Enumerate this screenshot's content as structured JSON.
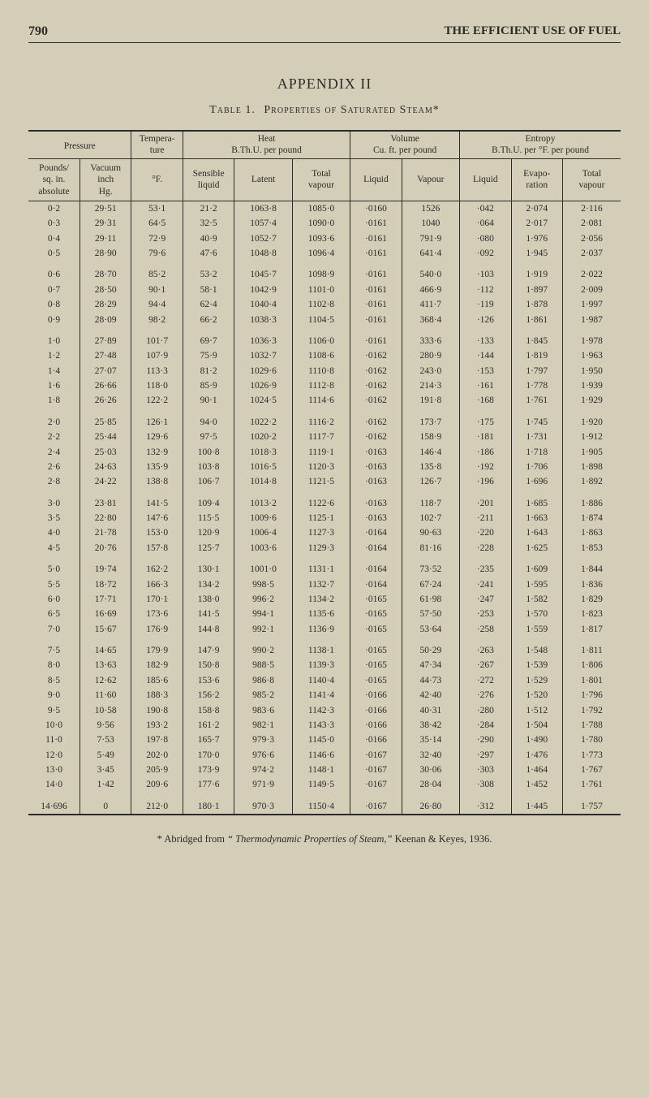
{
  "page_number": "790",
  "running_head": "THE EFFICIENT USE OF FUEL",
  "appendix_title": "APPENDIX II",
  "table_caption_prefix": "Table 1.",
  "table_caption_title": "Properties of Saturated Steam*",
  "footnote_prefix": "*  Abridged from ",
  "footnote_italic": "“ Thermodynamic Properties of Steam,”",
  "footnote_suffix": " Keenan & Keyes, 1936.",
  "group_headers": {
    "pressure": "Pressure",
    "temp": "Tempera-\nture",
    "heat": "Heat\nB.Th.U. per pound",
    "volume": "Volume\nCu. ft. per pound",
    "entropy": "Entropy\nB.Th.U. per °F. per pound"
  },
  "col_headers": {
    "pounds": "Pounds/\nsq. in.\nabsolute",
    "vacuum": "Vacuum\ninch\nHg.",
    "degF": "°F.",
    "sensible": "Sensible\nliquid",
    "latent": "Latent",
    "total_vap_heat": "Total\nvapour",
    "vol_liquid": "Liquid",
    "vol_vapour": "Vapour",
    "ent_liquid": "Liquid",
    "ent_evap": "Evapo-\nration",
    "ent_total": "Total\nvapour"
  },
  "rows": [
    [
      "0·2",
      "29·51",
      "53·1",
      "21·2",
      "1063·8",
      "1085·0",
      "·0160",
      "1526",
      "·042",
      "2·074",
      "2·116"
    ],
    [
      "0·3",
      "29·31",
      "64·5",
      "32·5",
      "1057·4",
      "1090·0",
      "·0161",
      "1040",
      "·064",
      "2·017",
      "2·081"
    ],
    [
      "0·4",
      "29·11",
      "72·9",
      "40·9",
      "1052·7",
      "1093·6",
      "·0161",
      "791·9",
      "·080",
      "1·976",
      "2·056"
    ],
    [
      "0·5",
      "28·90",
      "79·6",
      "47·6",
      "1048·8",
      "1096·4",
      "·0161",
      "641·4",
      "·092",
      "1·945",
      "2·037"
    ],
    [
      "0·6",
      "28·70",
      "85·2",
      "53·2",
      "1045·7",
      "1098·9",
      "·0161",
      "540·0",
      "·103",
      "1·919",
      "2·022"
    ],
    [
      "0·7",
      "28·50",
      "90·1",
      "58·1",
      "1042·9",
      "1101·0",
      "·0161",
      "466·9",
      "·112",
      "1·897",
      "2·009"
    ],
    [
      "0·8",
      "28·29",
      "94·4",
      "62·4",
      "1040·4",
      "1102·8",
      "·0161",
      "411·7",
      "·119",
      "1·878",
      "1·997"
    ],
    [
      "0·9",
      "28·09",
      "98·2",
      "66·2",
      "1038·3",
      "1104·5",
      "·0161",
      "368·4",
      "·126",
      "1·861",
      "1·987"
    ],
    [
      "1·0",
      "27·89",
      "101·7",
      "69·7",
      "1036·3",
      "1106·0",
      "·0161",
      "333·6",
      "·133",
      "1·845",
      "1·978"
    ],
    [
      "1·2",
      "27·48",
      "107·9",
      "75·9",
      "1032·7",
      "1108·6",
      "·0162",
      "280·9",
      "·144",
      "1·819",
      "1·963"
    ],
    [
      "1·4",
      "27·07",
      "113·3",
      "81·2",
      "1029·6",
      "1110·8",
      "·0162",
      "243·0",
      "·153",
      "1·797",
      "1·950"
    ],
    [
      "1·6",
      "26·66",
      "118·0",
      "85·9",
      "1026·9",
      "1112·8",
      "·0162",
      "214·3",
      "·161",
      "1·778",
      "1·939"
    ],
    [
      "1·8",
      "26·26",
      "122·2",
      "90·1",
      "1024·5",
      "1114·6",
      "·0162",
      "191·8",
      "·168",
      "1·761",
      "1·929"
    ],
    [
      "2·0",
      "25·85",
      "126·1",
      "94·0",
      "1022·2",
      "1116·2",
      "·0162",
      "173·7",
      "·175",
      "1·745",
      "1·920"
    ],
    [
      "2·2",
      "25·44",
      "129·6",
      "97·5",
      "1020·2",
      "1117·7",
      "·0162",
      "158·9",
      "·181",
      "1·731",
      "1·912"
    ],
    [
      "2·4",
      "25·03",
      "132·9",
      "100·8",
      "1018·3",
      "1119·1",
      "·0163",
      "146·4",
      "·186",
      "1·718",
      "1·905"
    ],
    [
      "2·6",
      "24·63",
      "135·9",
      "103·8",
      "1016·5",
      "1120·3",
      "·0163",
      "135·8",
      "·192",
      "1·706",
      "1·898"
    ],
    [
      "2·8",
      "24·22",
      "138·8",
      "106·7",
      "1014·8",
      "1121·5",
      "·0163",
      "126·7",
      "·196",
      "1·696",
      "1·892"
    ],
    [
      "3·0",
      "23·81",
      "141·5",
      "109·4",
      "1013·2",
      "1122·6",
      "·0163",
      "118·7",
      "·201",
      "1·685",
      "1·886"
    ],
    [
      "3·5",
      "22·80",
      "147·6",
      "115·5",
      "1009·6",
      "1125·1",
      "·0163",
      "102·7",
      "·211",
      "1·663",
      "1·874"
    ],
    [
      "4·0",
      "21·78",
      "153·0",
      "120·9",
      "1006·4",
      "1127·3",
      "·0164",
      "90·63",
      "·220",
      "1·643",
      "1·863"
    ],
    [
      "4·5",
      "20·76",
      "157·8",
      "125·7",
      "1003·6",
      "1129·3",
      "·0164",
      "81·16",
      "·228",
      "1·625",
      "1·853"
    ],
    [
      "5·0",
      "19·74",
      "162·2",
      "130·1",
      "1001·0",
      "1131·1",
      "·0164",
      "73·52",
      "·235",
      "1·609",
      "1·844"
    ],
    [
      "5·5",
      "18·72",
      "166·3",
      "134·2",
      "998·5",
      "1132·7",
      "·0164",
      "67·24",
      "·241",
      "1·595",
      "1·836"
    ],
    [
      "6·0",
      "17·71",
      "170·1",
      "138·0",
      "996·2",
      "1134·2",
      "·0165",
      "61·98",
      "·247",
      "1·582",
      "1·829"
    ],
    [
      "6·5",
      "16·69",
      "173·6",
      "141·5",
      "994·1",
      "1135·6",
      "·0165",
      "57·50",
      "·253",
      "1·570",
      "1·823"
    ],
    [
      "7·0",
      "15·67",
      "176·9",
      "144·8",
      "992·1",
      "1136·9",
      "·0165",
      "53·64",
      "·258",
      "1·559",
      "1·817"
    ],
    [
      "7·5",
      "14·65",
      "179·9",
      "147·9",
      "990·2",
      "1138·1",
      "·0165",
      "50·29",
      "·263",
      "1·548",
      "1·811"
    ],
    [
      "8·0",
      "13·63",
      "182·9",
      "150·8",
      "988·5",
      "1139·3",
      "·0165",
      "47·34",
      "·267",
      "1·539",
      "1·806"
    ],
    [
      "8·5",
      "12·62",
      "185·6",
      "153·6",
      "986·8",
      "1140·4",
      "·0165",
      "44·73",
      "·272",
      "1·529",
      "1·801"
    ],
    [
      "9·0",
      "11·60",
      "188·3",
      "156·2",
      "985·2",
      "1141·4",
      "·0166",
      "42·40",
      "·276",
      "1·520",
      "1·796"
    ],
    [
      "9·5",
      "10·58",
      "190·8",
      "158·8",
      "983·6",
      "1142·3",
      "·0166",
      "40·31",
      "·280",
      "1·512",
      "1·792"
    ],
    [
      "10·0",
      "9·56",
      "193·2",
      "161·2",
      "982·1",
      "1143·3",
      "·0166",
      "38·42",
      "·284",
      "1·504",
      "1·788"
    ],
    [
      "11·0",
      "7·53",
      "197·8",
      "165·7",
      "979·3",
      "1145·0",
      "·0166",
      "35·14",
      "·290",
      "1·490",
      "1·780"
    ],
    [
      "12·0",
      "5·49",
      "202·0",
      "170·0",
      "976·6",
      "1146·6",
      "·0167",
      "32·40",
      "·297",
      "1·476",
      "1·773"
    ],
    [
      "13·0",
      "3·45",
      "205·9",
      "173·9",
      "974·2",
      "1148·1",
      "·0167",
      "30·06",
      "·303",
      "1·464",
      "1·767"
    ],
    [
      "14·0",
      "1·42",
      "209·6",
      "177·6",
      "971·9",
      "1149·5",
      "·0167",
      "28·04",
      "·308",
      "1·452",
      "1·761"
    ],
    [
      "14·696",
      "0",
      "212·0",
      "180·1",
      "970·3",
      "1150·4",
      "·0167",
      "26·80",
      "·312",
      "1·445",
      "1·757"
    ]
  ],
  "block_starts": [
    0,
    4,
    8,
    13,
    18,
    22,
    27,
    37
  ],
  "colors": {
    "bg": "#d4cdb8",
    "text": "#2b2b28",
    "rule": "#2b2b28"
  },
  "col_widths_pct": [
    8,
    8,
    8,
    8,
    9,
    9,
    8,
    9,
    8,
    8,
    9
  ]
}
